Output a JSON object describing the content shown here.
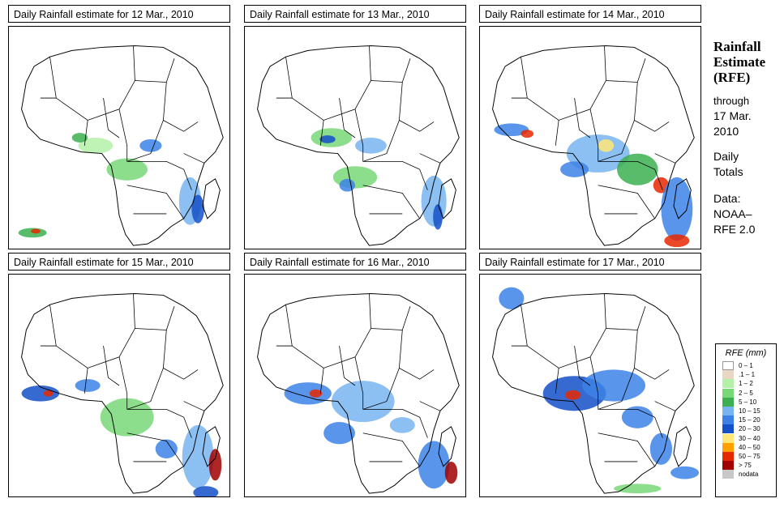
{
  "panels": [
    {
      "title": "Daily Rainfall estimate for  12 Mar., 2010"
    },
    {
      "title": "Daily Rainfall estimate for  13 Mar., 2010"
    },
    {
      "title": "Daily Rainfall estimate for  14 Mar., 2010"
    },
    {
      "title": "Daily Rainfall estimate for  15 Mar., 2010"
    },
    {
      "title": "Daily Rainfall estimate for  16 Mar., 2010"
    },
    {
      "title": "Daily Rainfall estimate for  17 Mar., 2010"
    }
  ],
  "side": {
    "title_lines": [
      "Rainfall",
      "Estimate",
      "(RFE)"
    ],
    "through_lines": [
      "through",
      "17 Mar.",
      "2010"
    ],
    "totals_lines": [
      "Daily",
      "Totals"
    ],
    "data_lines": [
      "Data:",
      "NOAA–",
      "RFE 2.0"
    ]
  },
  "legend": {
    "title": "RFE (mm)",
    "items": [
      {
        "label": "0 – 1",
        "color": "#ffffff"
      },
      {
        "label": ".1 – 1",
        "color": "#e8d7c2"
      },
      {
        "label": "1 – 2",
        "color": "#b4f0a8"
      },
      {
        "label": "2 – 5",
        "color": "#78d878"
      },
      {
        "label": "5 – 10",
        "color": "#3cb050"
      },
      {
        "label": "10 – 15",
        "color": "#78b4f0"
      },
      {
        "label": "15 – 20",
        "color": "#3c82e6"
      },
      {
        "label": "20 – 30",
        "color": "#1450c8"
      },
      {
        "label": "30 – 40",
        "color": "#ffe678"
      },
      {
        "label": "40 – 50",
        "color": "#ffa000"
      },
      {
        "label": "50 – 75",
        "color": "#e62800"
      },
      {
        "label": "> 75",
        "color": "#a00000"
      },
      {
        "label": "nodata",
        "color": "#c8c8c8"
      }
    ]
  }
}
